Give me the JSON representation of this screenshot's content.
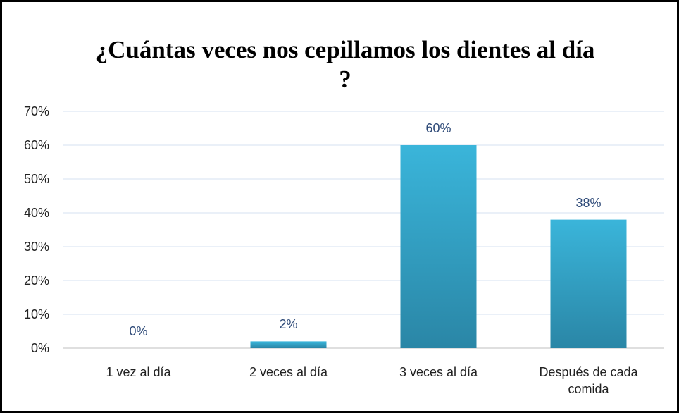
{
  "chart_data": {
    "type": "bar",
    "title": "¿Cuántas veces nos cepillamos los dientes al día ?",
    "categories": [
      "1 vez al día",
      "2 veces al día",
      "3 veces al día",
      "Después de cada comida"
    ],
    "values": [
      0,
      2,
      60,
      38
    ],
    "value_labels": [
      "0%",
      "2%",
      "60%",
      "38%"
    ],
    "color": "#3ab5da",
    "ylim": [
      0,
      70
    ],
    "yticks": [
      {
        "value": 0,
        "label": "0%"
      },
      {
        "value": 10,
        "label": "10%"
      },
      {
        "value": 20,
        "label": "20%"
      },
      {
        "value": 30,
        "label": "30%"
      },
      {
        "value": 40,
        "label": "40%"
      },
      {
        "value": 50,
        "label": "50%"
      },
      {
        "value": 60,
        "label": "60%"
      },
      {
        "value": 70,
        "label": "70%"
      }
    ],
    "grid": true
  }
}
